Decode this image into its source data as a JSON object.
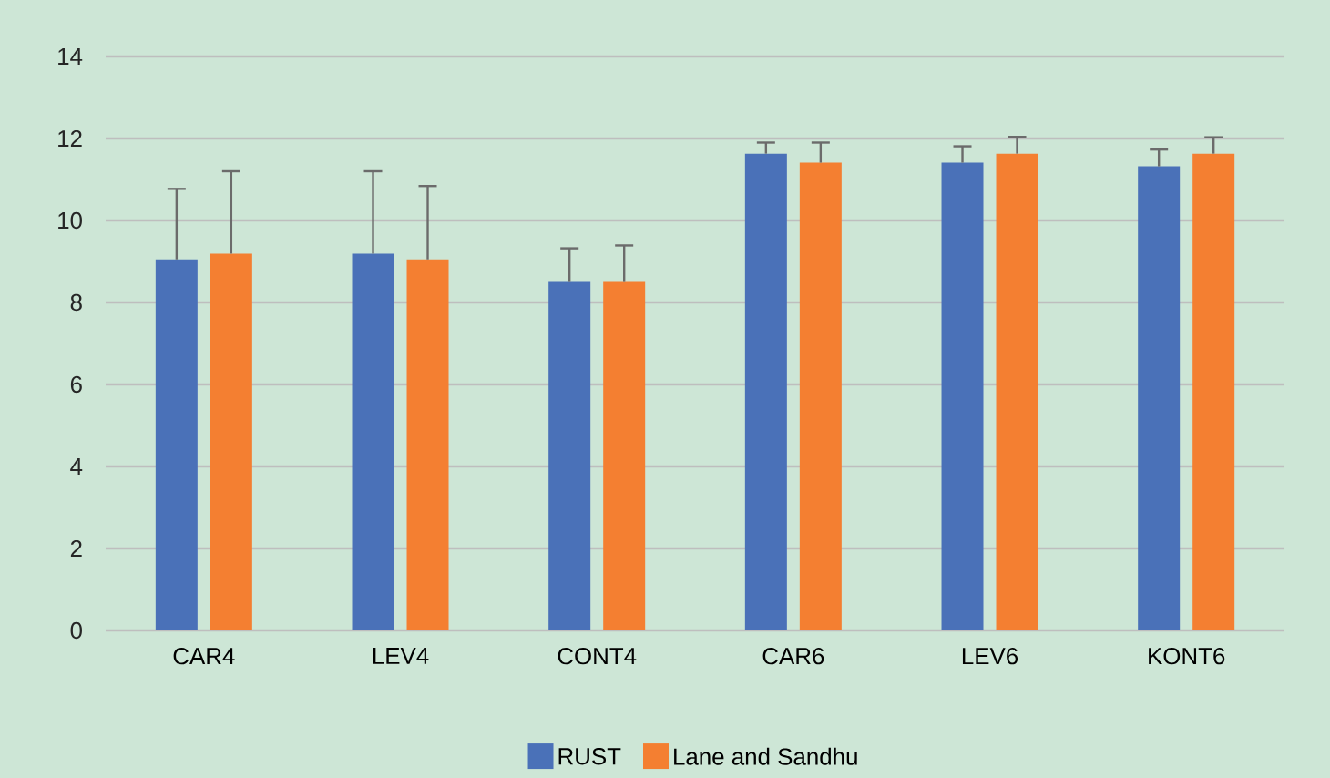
{
  "chart_data": {
    "type": "bar",
    "categories": [
      "CAR4",
      "LEV4",
      "CONT4",
      "CAR6",
      "LEV6",
      "KONT6"
    ],
    "series": [
      {
        "name": "RUST",
        "color": "#4a71b8",
        "values": [
          9.05,
          9.19,
          8.52,
          11.63,
          11.41,
          11.32
        ],
        "errors": [
          [
            9.05,
            10.77
          ],
          [
            9.19,
            11.2
          ],
          [
            8.52,
            9.32
          ],
          [
            11.63,
            11.9
          ],
          [
            11.41,
            11.81
          ],
          [
            11.32,
            11.73
          ]
        ]
      },
      {
        "name": "Lane and Sandhu",
        "color": "#f47f31",
        "values": [
          9.19,
          9.05,
          8.52,
          11.41,
          11.63,
          11.63
        ],
        "errors": [
          [
            9.19,
            11.2
          ],
          [
            9.05,
            10.84
          ],
          [
            8.52,
            9.39
          ],
          [
            11.41,
            11.9
          ],
          [
            11.63,
            12.04
          ],
          [
            11.63,
            12.03
          ]
        ]
      }
    ],
    "ylim": [
      0,
      14
    ],
    "yticks": [
      0,
      2,
      4,
      6,
      8,
      10,
      12,
      14
    ],
    "grid": "y",
    "legend": "bottom"
  }
}
